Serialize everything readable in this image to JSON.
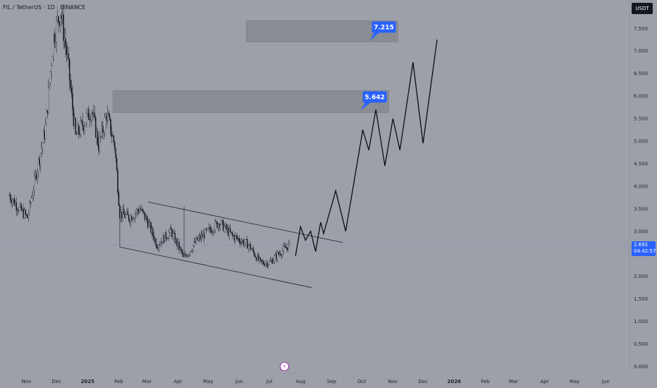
{
  "header": {
    "symbol_title": "FIL / TetherUS · 1D · BINANCE"
  },
  "axis": {
    "unit": "USDT"
  },
  "price_tag": {
    "price": "2.692",
    "countdown": "04:42:57"
  },
  "colors": {
    "background": "#9da0a8",
    "candle": "#131722",
    "marker_line": "#2962ff",
    "target_zone": "#8a8c94",
    "callout": "#2962ff"
  },
  "icons": {
    "event_marker": "lightning-bolt-icon"
  },
  "chart_data": {
    "type": "candlestick",
    "title": "FIL / TetherUS · 1D · BINANCE",
    "y_unit": "USDT",
    "ylim": [
      -0.1,
      8.0
    ],
    "y_ticks": [
      "0.000",
      "0.500",
      "1.000",
      "1.500",
      "2.000",
      "2.500",
      "3.000",
      "3.500",
      "4.000",
      "4.500",
      "5.000",
      "5.500",
      "6.000",
      "6.500",
      "7.000",
      "7.500"
    ],
    "x_ticks": [
      "Nov",
      "Dec",
      "2025",
      "Feb",
      "Mar",
      "Apr",
      "May",
      "Jun",
      "Jul",
      "Aug",
      "Sep",
      "Oct",
      "Nov",
      "Dec",
      "2026",
      "Feb",
      "Mar",
      "Apr",
      "May",
      "Jun"
    ],
    "price_path": [
      {
        "date": "2024-10-15",
        "close": 3.8
      },
      {
        "date": "2024-10-25",
        "close": 3.5
      },
      {
        "date": "2024-11-02",
        "close": 3.3
      },
      {
        "date": "2024-11-10",
        "close": 4.2
      },
      {
        "date": "2024-11-20",
        "close": 5.3
      },
      {
        "date": "2024-11-28",
        "close": 7.3
      },
      {
        "date": "2024-12-05",
        "close": 7.9
      },
      {
        "date": "2024-12-12",
        "close": 6.8
      },
      {
        "date": "2024-12-20",
        "close": 5.1
      },
      {
        "date": "2024-12-28",
        "close": 5.4
      },
      {
        "date": "2025-01-05",
        "close": 5.7
      },
      {
        "date": "2025-01-12",
        "close": 4.9
      },
      {
        "date": "2025-01-20",
        "close": 5.6
      },
      {
        "date": "2025-01-28",
        "close": 4.9
      },
      {
        "date": "2025-02-02",
        "close": 3.4
      },
      {
        "date": "2025-02-12",
        "close": 3.3
      },
      {
        "date": "2025-02-22",
        "close": 3.5
      },
      {
        "date": "2025-03-02",
        "close": 3.2
      },
      {
        "date": "2025-03-11",
        "close": 2.7
      },
      {
        "date": "2025-03-25",
        "close": 3.0
      },
      {
        "date": "2025-04-07",
        "close": 2.4
      },
      {
        "date": "2025-04-20",
        "close": 2.8
      },
      {
        "date": "2025-05-12",
        "close": 3.2
      },
      {
        "date": "2025-05-25",
        "close": 2.9
      },
      {
        "date": "2025-06-10",
        "close": 2.7
      },
      {
        "date": "2025-06-22",
        "close": 2.3
      },
      {
        "date": "2025-07-01",
        "close": 2.3
      },
      {
        "date": "2025-07-10",
        "close": 2.5
      },
      {
        "date": "2025-07-21",
        "close": 2.7
      }
    ],
    "last_price": 2.692,
    "channel": {
      "upper": [
        {
          "date": "2025-03-02",
          "value": 3.65
        },
        {
          "date": "2025-09-12",
          "value": 2.75
        }
      ],
      "lower": [
        {
          "date": "2025-02-02",
          "value": 2.65
        },
        {
          "date": "2025-08-12",
          "value": 1.75
        }
      ]
    },
    "projection": [
      {
        "date": "2025-07-27",
        "value": 2.45
      },
      {
        "date": "2025-08-01",
        "value": 3.1
      },
      {
        "date": "2025-08-06",
        "value": 2.8
      },
      {
        "date": "2025-08-11",
        "value": 3.0
      },
      {
        "date": "2025-08-16",
        "value": 2.55
      },
      {
        "date": "2025-08-21",
        "value": 3.2
      },
      {
        "date": "2025-08-24",
        "value": 2.95
      },
      {
        "date": "2025-09-05",
        "value": 3.9
      },
      {
        "date": "2025-09-15",
        "value": 3.0
      },
      {
        "date": "2025-10-02",
        "value": 5.25
      },
      {
        "date": "2025-10-08",
        "value": 4.8
      },
      {
        "date": "2025-10-15",
        "value": 5.7
      },
      {
        "date": "2025-10-24",
        "value": 4.45
      },
      {
        "date": "2025-11-01",
        "value": 5.5
      },
      {
        "date": "2025-11-08",
        "value": 4.8
      },
      {
        "date": "2025-11-21",
        "value": 6.75
      },
      {
        "date": "2025-12-01",
        "value": 4.95
      },
      {
        "date": "2025-12-15",
        "value": 7.25
      }
    ],
    "zones": [
      {
        "label": "5.642",
        "from_date": "2025-01-26",
        "to_date": "2025-10-28",
        "low": 5.63,
        "high": 6.12
      },
      {
        "label": "7.215",
        "from_date": "2025-06-08",
        "to_date": "2025-11-06",
        "low": 7.2,
        "high": 7.67
      }
    ],
    "grid": false
  }
}
